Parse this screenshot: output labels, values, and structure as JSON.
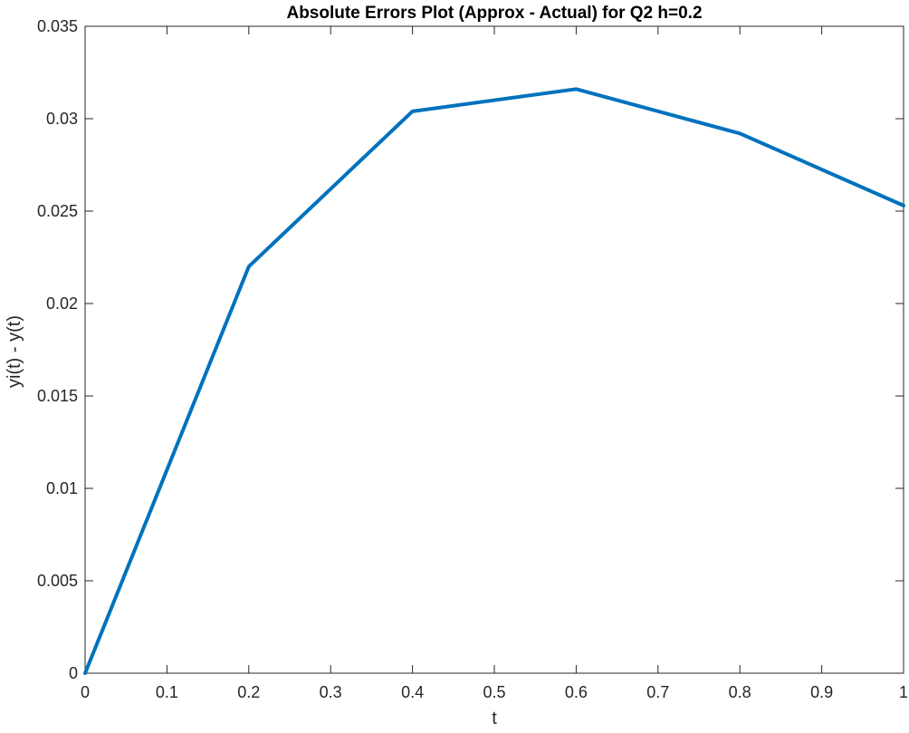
{
  "chart_data": {
    "type": "line",
    "title": "Absolute Errors Plot (Approx - Actual) for Q2 h=0.2",
    "xlabel": "t",
    "ylabel": "yi(t) - y(t)",
    "xlim": [
      0,
      1
    ],
    "ylim": [
      0,
      0.035
    ],
    "xticks": [
      0,
      0.1,
      0.2,
      0.3,
      0.4,
      0.5,
      0.6,
      0.7,
      0.8,
      0.9,
      1
    ],
    "xtick_labels": [
      "0",
      "0.1",
      "0.2",
      "0.3",
      "0.4",
      "0.5",
      "0.6",
      "0.7",
      "0.8",
      "0.9",
      "1"
    ],
    "yticks": [
      0,
      0.005,
      0.01,
      0.015,
      0.02,
      0.025,
      0.03,
      0.035
    ],
    "ytick_labels": [
      "0",
      "0.005",
      "0.01",
      "0.015",
      "0.02",
      "0.025",
      "0.03",
      "0.035"
    ],
    "grid": false,
    "series": [
      {
        "color": "#0072BD",
        "x": [
          0,
          0.2,
          0.4,
          0.6,
          0.8,
          1.0
        ],
        "y": [
          0,
          0.022,
          0.0304,
          0.0316,
          0.0292,
          0.0253
        ]
      }
    ]
  }
}
